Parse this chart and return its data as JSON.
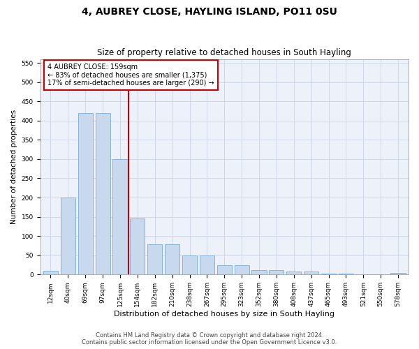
{
  "title": "4, AUBREY CLOSE, HAYLING ISLAND, PO11 0SU",
  "subtitle": "Size of property relative to detached houses in South Hayling",
  "xlabel": "Distribution of detached houses by size in South Hayling",
  "ylabel": "Number of detached properties",
  "categories": [
    "12sqm",
    "40sqm",
    "69sqm",
    "97sqm",
    "125sqm",
    "154sqm",
    "182sqm",
    "210sqm",
    "238sqm",
    "267sqm",
    "295sqm",
    "323sqm",
    "352sqm",
    "380sqm",
    "408sqm",
    "437sqm",
    "465sqm",
    "493sqm",
    "521sqm",
    "550sqm",
    "578sqm"
  ],
  "values": [
    10,
    200,
    420,
    420,
    300,
    145,
    78,
    78,
    50,
    50,
    25,
    25,
    12,
    12,
    8,
    8,
    3,
    3,
    0,
    0,
    4
  ],
  "bar_color": "#c8d9ee",
  "bar_edge_color": "#7aacd4",
  "grid_color": "#d0d8e8",
  "background_color": "#edf2fa",
  "red_line_x": 4.5,
  "annotation_line1": "4 AUBREY CLOSE: 159sqm",
  "annotation_line2": "← 83% of detached houses are smaller (1,375)",
  "annotation_line3": "17% of semi-detached houses are larger (290) →",
  "annotation_box_color": "#ffffff",
  "annotation_box_edge": "#cc0000",
  "red_line_color": "#cc0000",
  "ylim": [
    0,
    560
  ],
  "yticks": [
    0,
    50,
    100,
    150,
    200,
    250,
    300,
    350,
    400,
    450,
    500,
    550
  ],
  "footer1": "Contains HM Land Registry data © Crown copyright and database right 2024.",
  "footer2": "Contains public sector information licensed under the Open Government Licence v3.0.",
  "title_fontsize": 10,
  "subtitle_fontsize": 8.5,
  "xlabel_fontsize": 8,
  "ylabel_fontsize": 7.5,
  "tick_fontsize": 6.5,
  "annotation_fontsize": 7,
  "footer_fontsize": 6
}
